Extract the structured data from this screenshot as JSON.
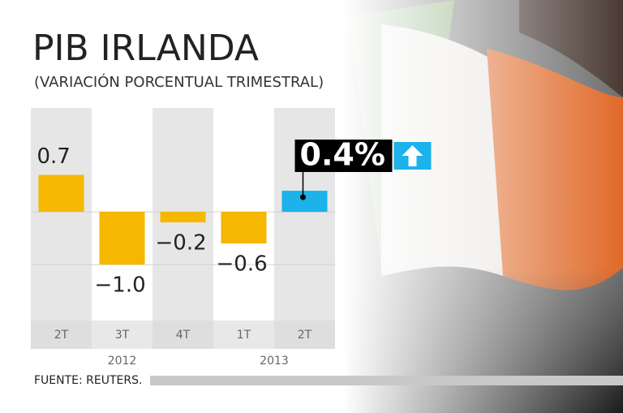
{
  "chart_data": {
    "type": "bar",
    "title": "PIB IRLANDA",
    "subtitle": "(VARIACIÓN PORCENTUAL TRIMESTRAL)",
    "categories": [
      "2T",
      "3T",
      "4T",
      "1T",
      "2T"
    ],
    "periods": [
      "2012",
      "2013"
    ],
    "values": [
      0.7,
      -1.0,
      -0.2,
      -0.6,
      0.4
    ],
    "value_labels": [
      "0.7",
      "−1.0",
      "−0.2",
      "−0.6",
      "0.4%"
    ],
    "colors": [
      "#f6b700",
      "#f6b700",
      "#f6b700",
      "#f6b700",
      "#1cb2ea"
    ],
    "ylim": [
      -2.06,
      1.97
    ],
    "source": "FUENTE: REUTERS."
  }
}
